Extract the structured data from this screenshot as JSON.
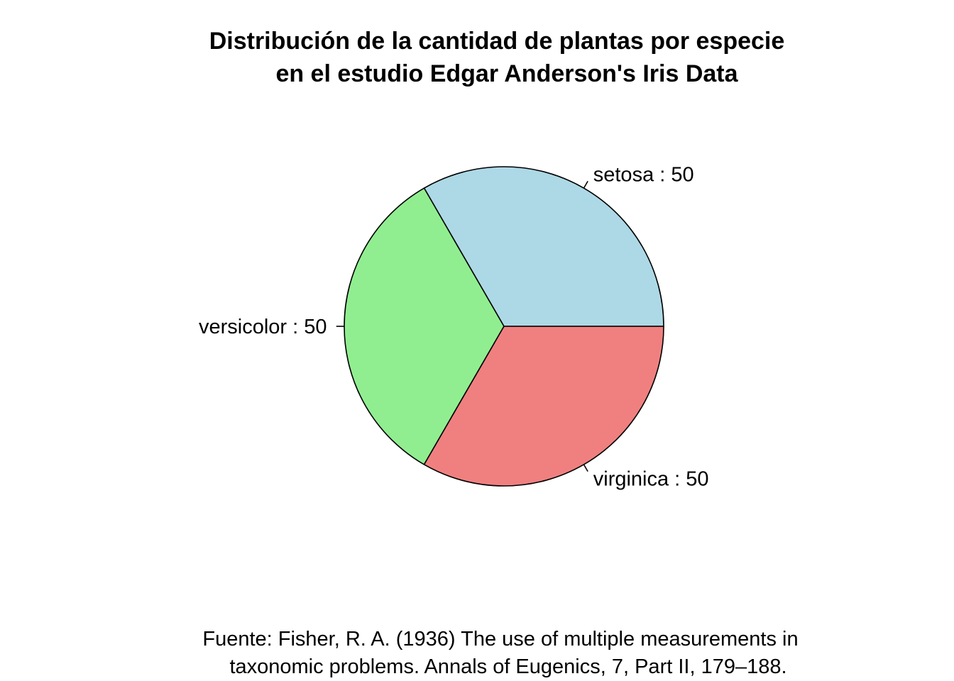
{
  "chart_data": {
    "type": "pie",
    "title_lines": [
      "Distribución de la cantidad de plantas por especie",
      "en el estudio Edgar Anderson's Iris Data"
    ],
    "slices": [
      {
        "name": "setosa",
        "value": 50,
        "label": "setosa : 50",
        "color": "#ADD8E6"
      },
      {
        "name": "versicolor",
        "value": 50,
        "label": "versicolor : 50",
        "color": "#90EE90"
      },
      {
        "name": "virginica",
        "value": 50,
        "label": "virginica : 50",
        "color": "#F08080"
      }
    ],
    "caption_lines": [
      "Fuente: Fisher, R. A. (1936) The use of multiple measurements in",
      "taxonomic problems. Annals of Eugenics, 7, Part II, 179–188."
    ],
    "start_angle_deg": 0,
    "direction": "counterclockwise"
  }
}
